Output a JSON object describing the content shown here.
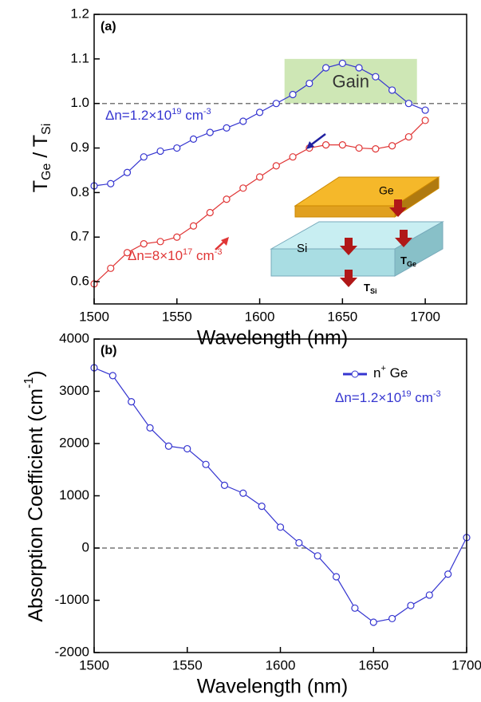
{
  "chart_data": [
    {
      "type": "line",
      "panel_label": "(a)",
      "xlabel": "Wavelength (nm)",
      "ylabel_parts": [
        "T",
        "Ge",
        " / T",
        "Si"
      ],
      "x": [
        1500,
        1510,
        1520,
        1530,
        1540,
        1550,
        1560,
        1570,
        1580,
        1590,
        1600,
        1610,
        1620,
        1630,
        1640,
        1650,
        1660,
        1670,
        1680,
        1690,
        1700
      ],
      "series": [
        {
          "color": "#3535d0",
          "label_parts": [
            "Δn=1.2×10",
            "19",
            " cm",
            "-3"
          ],
          "values": [
            0.815,
            0.82,
            0.845,
            0.88,
            0.893,
            0.9,
            0.92,
            0.935,
            0.945,
            0.96,
            0.98,
            1.0,
            1.02,
            1.045,
            1.08,
            1.09,
            1.08,
            1.06,
            1.03,
            1.0,
            0.985
          ]
        },
        {
          "color": "#e03535",
          "label_parts": [
            "Δn=8×10",
            "17",
            " cm",
            "-3"
          ],
          "values": [
            0.595,
            0.63,
            0.665,
            0.685,
            0.69,
            0.7,
            0.725,
            0.755,
            0.785,
            0.81,
            0.835,
            0.86,
            0.88,
            0.9,
            0.907,
            0.907,
            0.9,
            0.898,
            0.905,
            0.925,
            0.962
          ]
        }
      ],
      "xlim": [
        1500,
        1725
      ],
      "xticks": [
        1500,
        1550,
        1600,
        1650,
        1700
      ],
      "ylim": [
        0.55,
        1.2
      ],
      "yticks": [
        {
          "value": 0.6,
          "label": "0.6"
        },
        {
          "value": 0.7,
          "label": "0.7"
        },
        {
          "value": 0.8,
          "label": "0.8"
        },
        {
          "value": 0.9,
          "label": "0.9"
        },
        {
          "value": 1.0,
          "label": "1.0"
        },
        {
          "value": 1.1,
          "label": "1.1"
        },
        {
          "value": 1.2,
          "label": "1.2"
        }
      ],
      "hline": 1.0,
      "gain_region": {
        "x": [
          1615,
          1695
        ],
        "y": [
          1.0,
          1.1
        ],
        "label": "Gain"
      },
      "inset": {
        "top_layer": "Ge",
        "bottom_layer": "Si",
        "t_ge": [
          "T",
          "Ge"
        ],
        "t_si": [
          "T",
          "Si"
        ]
      }
    },
    {
      "type": "line",
      "panel_label": "(b)",
      "xlabel": "Wavelength (nm)",
      "ylabel_parts": [
        "Absorption Coefficient (cm",
        "-1",
        ")"
      ],
      "x": [
        1500,
        1510,
        1520,
        1530,
        1540,
        1550,
        1560,
        1570,
        1580,
        1590,
        1600,
        1610,
        1620,
        1630,
        1640,
        1650,
        1660,
        1670,
        1680,
        1690,
        1700
      ],
      "series": [
        {
          "color": "#3535d0",
          "legend_parts": [
            "n",
            "+",
            " Ge"
          ],
          "values": [
            3450,
            3300,
            2800,
            2300,
            1950,
            1900,
            1600,
            1200,
            1050,
            800,
            400,
            100,
            -150,
            -550,
            -1150,
            -1420,
            -1350,
            -1100,
            -900,
            -500,
            200
          ]
        }
      ],
      "annotation_parts": [
        "Δn=1.2×10",
        "19",
        " cm",
        "-3"
      ],
      "xlim": [
        1500,
        1700
      ],
      "xticks": [
        1500,
        1550,
        1600,
        1650,
        1700
      ],
      "ylim": [
        -2000,
        4000
      ],
      "yticks": [
        -2000,
        -1000,
        0,
        1000,
        2000,
        3000,
        4000
      ],
      "hline": 0
    }
  ]
}
